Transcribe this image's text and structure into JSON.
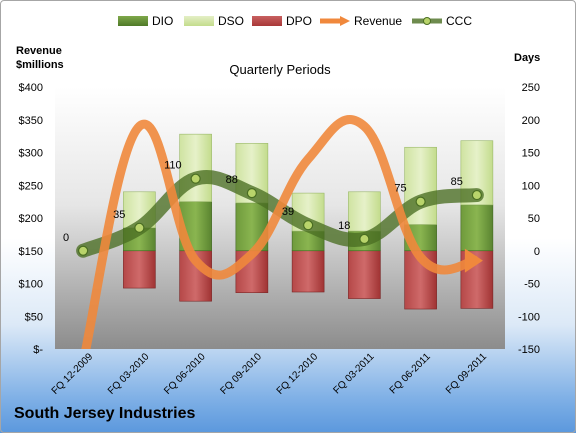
{
  "company": "South Jersey Industries",
  "chart_data": {
    "type": "bar",
    "title": "Quarterly Periods",
    "left_axis_label": [
      "Revenue",
      "$millions"
    ],
    "right_axis_label": "Days",
    "categories": [
      "FQ 12-2009",
      "FQ 03-2010",
      "FQ 06-2010",
      "FQ 09-2010",
      "FQ 12-2010",
      "FQ 03-2011",
      "FQ 06-2011",
      "FQ 09-2011"
    ],
    "left_ticks": [
      "$400",
      "$350",
      "$300",
      "$250",
      "$200",
      "$150",
      "$100",
      "$50",
      "$-"
    ],
    "right_ticks": [
      "250",
      "200",
      "150",
      "100",
      "50",
      "0",
      "-50",
      "-100",
      "-150"
    ],
    "ylim_left": [
      0,
      400
    ],
    "ylim_right": [
      -150,
      250
    ],
    "legend_position": "top",
    "series": [
      {
        "name": "DIO",
        "type": "stacked-bar",
        "axis": "right",
        "color": "#4f7a28",
        "values": [
          null,
          35,
          75,
          73,
          30,
          30,
          40,
          70
        ]
      },
      {
        "name": "DSO",
        "type": "stacked-bar",
        "axis": "right",
        "color": "#c3dc8c",
        "values": [
          null,
          55,
          103,
          91,
          58,
          60,
          118,
          98
        ]
      },
      {
        "name": "DPO",
        "type": "bar",
        "axis": "right",
        "color": "#a83838",
        "values": [
          null,
          -57,
          -77,
          -64,
          -63,
          -73,
          -89,
          -88
        ]
      },
      {
        "name": "Revenue",
        "type": "line",
        "axis": "left",
        "color": "#f0883c",
        "values": [
          -20,
          340,
          135,
          145,
          290,
          340,
          140,
          135
        ]
      },
      {
        "name": "CCC",
        "type": "line",
        "axis": "right",
        "color": "#4a6e22",
        "values": [
          0,
          35,
          110,
          88,
          39,
          18,
          75,
          85
        ]
      }
    ],
    "data_labels": [
      "0",
      "35",
      "110",
      "88",
      "39",
      "18",
      "75",
      "85"
    ]
  }
}
